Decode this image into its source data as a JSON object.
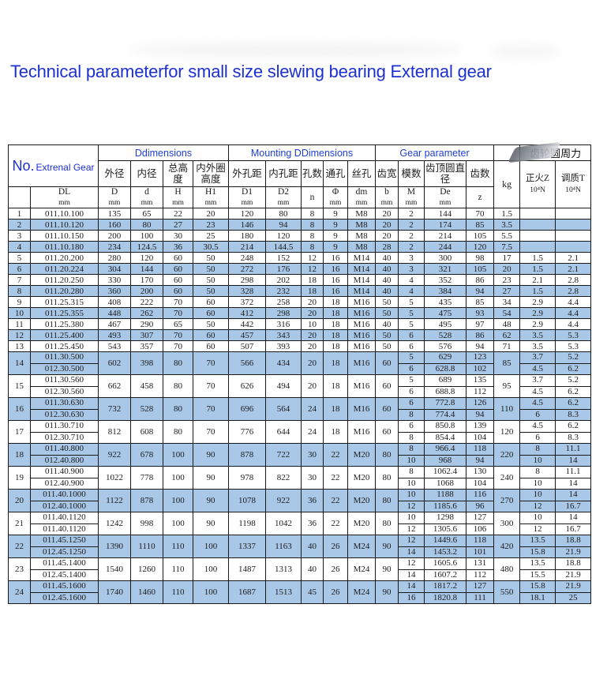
{
  "title": "Technical parameterfor small size slewing bearing External gear",
  "table": {
    "corner_no": "No.",
    "corner_type": "Extrenal Gear",
    "group_headers": [
      "Ddimensions",
      "Mounting DDimensions",
      "Gear parameter"
    ],
    "gear_force_header": "齿轮圆周力",
    "cn_headers": [
      "外径",
      "内径",
      "总高度",
      "内外圈高度",
      "外孔距",
      "内孔距",
      "孔数",
      "通孔",
      "丝孔",
      "齿宽",
      "模数",
      "齿顶圆直径",
      "齿数"
    ],
    "kg_header": "kg",
    "force_headers": [
      [
        "正火Z",
        "10⁴N"
      ],
      [
        "调质T",
        "10⁴N"
      ]
    ],
    "symbol_headers": [
      [
        "DL",
        "mm"
      ],
      [
        "D",
        "mm"
      ],
      [
        "d",
        "mm"
      ],
      [
        "H",
        "mm"
      ],
      [
        "H1",
        "mm"
      ],
      [
        "D1",
        "mm"
      ],
      [
        "D2",
        "mm"
      ],
      [
        "n",
        ""
      ],
      [
        "Φ",
        "mm"
      ],
      [
        "dm",
        "mm"
      ],
      [
        "b",
        "mm"
      ],
      [
        "M",
        "mm"
      ],
      [
        "De",
        "mm"
      ],
      [
        "z",
        ""
      ]
    ],
    "colors": {
      "row_alt": "#a9c7e7",
      "title_blue": "#1c2fd2",
      "header_blue": "#1f3fd4",
      "border": "#1a1a1a"
    },
    "rows": [
      {
        "no": "1",
        "dl": [
          "011.10.100"
        ],
        "vals": [
          "135",
          "65",
          "22",
          "20",
          "120",
          "80",
          "8",
          "9",
          "M8",
          "20"
        ],
        "m": [
          "2"
        ],
        "de": [
          "144"
        ],
        "z": [
          "70"
        ],
        "kg": "1.5",
        "fz": [
          ""
        ],
        "ft": [
          ""
        ]
      },
      {
        "no": "2",
        "dl": [
          "011.10.120"
        ],
        "vals": [
          "160",
          "80",
          "27",
          "23",
          "146",
          "94",
          "8",
          "9",
          "M8",
          "20"
        ],
        "m": [
          "2"
        ],
        "de": [
          "174"
        ],
        "z": [
          "85"
        ],
        "kg": "3.5",
        "fz": [
          ""
        ],
        "ft": [
          ""
        ]
      },
      {
        "no": "3",
        "dl": [
          "011.10.150"
        ],
        "vals": [
          "200",
          "100",
          "30",
          "25",
          "180",
          "120",
          "8",
          "9",
          "M8",
          "20"
        ],
        "m": [
          "2"
        ],
        "de": [
          "214"
        ],
        "z": [
          "105"
        ],
        "kg": "5.5",
        "fz": [
          ""
        ],
        "ft": [
          ""
        ]
      },
      {
        "no": "4",
        "dl": [
          "011.10.180"
        ],
        "vals": [
          "234",
          "124.5",
          "36",
          "30.5",
          "214",
          "144.5",
          "8",
          "9",
          "M8",
          "28"
        ],
        "m": [
          "2"
        ],
        "de": [
          "244"
        ],
        "z": [
          "120"
        ],
        "kg": "7.5",
        "fz": [
          ""
        ],
        "ft": [
          ""
        ]
      },
      {
        "no": "5",
        "dl": [
          "011.20.200"
        ],
        "vals": [
          "280",
          "120",
          "60",
          "50",
          "248",
          "152",
          "12",
          "16",
          "M14",
          "40"
        ],
        "m": [
          "3"
        ],
        "de": [
          "300"
        ],
        "z": [
          "98"
        ],
        "kg": "17",
        "fz": [
          "1.5"
        ],
        "ft": [
          "2.1"
        ]
      },
      {
        "no": "6",
        "dl": [
          "011.20.224"
        ],
        "vals": [
          "304",
          "144",
          "60",
          "50",
          "272",
          "176",
          "12",
          "16",
          "M14",
          "40"
        ],
        "m": [
          "3"
        ],
        "de": [
          "321"
        ],
        "z": [
          "105"
        ],
        "kg": "20",
        "fz": [
          "1.5"
        ],
        "ft": [
          "2.1"
        ]
      },
      {
        "no": "7",
        "dl": [
          "011.20.250"
        ],
        "vals": [
          "330",
          "170",
          "60",
          "50",
          "298",
          "202",
          "18",
          "16",
          "M14",
          "40"
        ],
        "m": [
          "4"
        ],
        "de": [
          "352"
        ],
        "z": [
          "86"
        ],
        "kg": "23",
        "fz": [
          "2.1"
        ],
        "ft": [
          "2.8"
        ]
      },
      {
        "no": "8",
        "dl": [
          "011.20.280"
        ],
        "vals": [
          "360",
          "200",
          "60",
          "50",
          "328",
          "232",
          "18",
          "16",
          "M14",
          "40"
        ],
        "m": [
          "4"
        ],
        "de": [
          "384"
        ],
        "z": [
          "94"
        ],
        "kg": "27",
        "fz": [
          "1.5"
        ],
        "ft": [
          "2.8"
        ]
      },
      {
        "no": "9",
        "dl": [
          "011.25.315"
        ],
        "vals": [
          "408",
          "222",
          "70",
          "60",
          "372",
          "258",
          "20",
          "18",
          "M16",
          "50"
        ],
        "m": [
          "5"
        ],
        "de": [
          "435"
        ],
        "z": [
          "85"
        ],
        "kg": "34",
        "fz": [
          "2.9"
        ],
        "ft": [
          "4.4"
        ]
      },
      {
        "no": "10",
        "dl": [
          "011.25.355"
        ],
        "vals": [
          "448",
          "262",
          "70",
          "60",
          "412",
          "298",
          "20",
          "18",
          "M16",
          "50"
        ],
        "m": [
          "5"
        ],
        "de": [
          "475"
        ],
        "z": [
          "93"
        ],
        "kg": "54",
        "fz": [
          "2.9"
        ],
        "ft": [
          "4.4"
        ]
      },
      {
        "no": "11",
        "dl": [
          "011.25.380"
        ],
        "vals": [
          "467",
          "290",
          "65",
          "50",
          "442",
          "316",
          "10",
          "18",
          "M16",
          "40"
        ],
        "m": [
          "5"
        ],
        "de": [
          "495"
        ],
        "z": [
          "97"
        ],
        "kg": "48",
        "fz": [
          "2.9"
        ],
        "ft": [
          "4.4"
        ]
      },
      {
        "no": "12",
        "dl": [
          "011.25.400"
        ],
        "vals": [
          "493",
          "307",
          "70",
          "60",
          "457",
          "343",
          "20",
          "18",
          "M16",
          "50"
        ],
        "m": [
          "6"
        ],
        "de": [
          "528"
        ],
        "z": [
          "86"
        ],
        "kg": "62",
        "fz": [
          "3.5"
        ],
        "ft": [
          "5.3"
        ]
      },
      {
        "no": "13",
        "dl": [
          "011.25.450"
        ],
        "vals": [
          "543",
          "357",
          "70",
          "60",
          "507",
          "393",
          "20",
          "18",
          "M16",
          "50"
        ],
        "m": [
          "6"
        ],
        "de": [
          "576"
        ],
        "z": [
          "94"
        ],
        "kg": "71",
        "fz": [
          "3.5"
        ],
        "ft": [
          "5.3"
        ]
      },
      {
        "no": "14",
        "dl": [
          "011.30.500",
          "012.30.500"
        ],
        "vals": [
          "602",
          "398",
          "80",
          "70",
          "566",
          "434",
          "20",
          "18",
          "M16",
          "60"
        ],
        "m": [
          "5",
          "6"
        ],
        "de": [
          "629",
          "628.8"
        ],
        "z": [
          "123",
          "102"
        ],
        "kg": "85",
        "fz": [
          "3.7",
          "4.5"
        ],
        "ft": [
          "5.2",
          "6.2"
        ]
      },
      {
        "no": "15",
        "dl": [
          "011.30.560",
          "012.30.560"
        ],
        "vals": [
          "662",
          "458",
          "80",
          "70",
          "626",
          "494",
          "20",
          "18",
          "M16",
          "60"
        ],
        "m": [
          "5",
          "6"
        ],
        "de": [
          "689",
          "688.8"
        ],
        "z": [
          "135",
          "112"
        ],
        "kg": "95",
        "fz": [
          "3.7",
          "4.5"
        ],
        "ft": [
          "5.2",
          "6.2"
        ]
      },
      {
        "no": "16",
        "dl": [
          "011.30.630",
          "012.30.630"
        ],
        "vals": [
          "732",
          "528",
          "80",
          "70",
          "696",
          "564",
          "24",
          "18",
          "M16",
          "60"
        ],
        "m": [
          "6",
          "8"
        ],
        "de": [
          "772.8",
          "774.4"
        ],
        "z": [
          "126",
          "94"
        ],
        "kg": "110",
        "fz": [
          "4.5",
          "6"
        ],
        "ft": [
          "6.2",
          "8.3"
        ]
      },
      {
        "no": "17",
        "dl": [
          "011.30.710",
          "012.30.710"
        ],
        "vals": [
          "812",
          "608",
          "80",
          "70",
          "776",
          "644",
          "24",
          "18",
          "M16",
          "60"
        ],
        "m": [
          "6",
          "8"
        ],
        "de": [
          "850.8",
          "854.4"
        ],
        "z": [
          "139",
          "104"
        ],
        "kg": "120",
        "fz": [
          "4.5",
          "6"
        ],
        "ft": [
          "6.2",
          "8.3"
        ]
      },
      {
        "no": "18",
        "dl": [
          "011.40.800",
          "012.40.800"
        ],
        "vals": [
          "922",
          "678",
          "100",
          "90",
          "878",
          "722",
          "30",
          "22",
          "M20",
          "80"
        ],
        "m": [
          "8",
          "10"
        ],
        "de": [
          "966.4",
          "968"
        ],
        "z": [
          "118",
          "94"
        ],
        "kg": "220",
        "fz": [
          "8",
          "10"
        ],
        "ft": [
          "11.1",
          "14"
        ]
      },
      {
        "no": "19",
        "dl": [
          "011.40.900",
          "012.40.900"
        ],
        "vals": [
          "1022",
          "778",
          "100",
          "90",
          "978",
          "822",
          "30",
          "22",
          "M20",
          "80"
        ],
        "m": [
          "8",
          "10"
        ],
        "de": [
          "1062.4",
          "1068"
        ],
        "z": [
          "130",
          "104"
        ],
        "kg": "240",
        "fz": [
          "8",
          "10"
        ],
        "ft": [
          "11.1",
          "14"
        ]
      },
      {
        "no": "20",
        "dl": [
          "011.40.1000",
          "012.40.1000"
        ],
        "vals": [
          "1122",
          "878",
          "100",
          "90",
          "1078",
          "922",
          "36",
          "22",
          "M20",
          "80"
        ],
        "m": [
          "10",
          "12"
        ],
        "de": [
          "1188",
          "1185.6"
        ],
        "z": [
          "116",
          "96"
        ],
        "kg": "270",
        "fz": [
          "10",
          "12"
        ],
        "ft": [
          "14",
          "16.7"
        ]
      },
      {
        "no": "21",
        "dl": [
          "011.40.1120",
          "011.40.1120"
        ],
        "vals": [
          "1242",
          "998",
          "100",
          "90",
          "1198",
          "1042",
          "36",
          "22",
          "M20",
          "80"
        ],
        "m": [
          "10",
          "12"
        ],
        "de": [
          "1298",
          "1305.6"
        ],
        "z": [
          "127",
          "106"
        ],
        "kg": "300",
        "fz": [
          "10",
          "12"
        ],
        "ft": [
          "14",
          "16.7"
        ]
      },
      {
        "no": "22",
        "dl": [
          "011.45.1250",
          "012.45.1250"
        ],
        "vals": [
          "1390",
          "1110",
          "110",
          "100",
          "1337",
          "1163",
          "40",
          "26",
          "M24",
          "90"
        ],
        "m": [
          "12",
          "14"
        ],
        "de": [
          "1449.6",
          "1453.2"
        ],
        "z": [
          "118",
          "101"
        ],
        "kg": "420",
        "fz": [
          "13.5",
          "15.8"
        ],
        "ft": [
          "18.8",
          "21.9"
        ]
      },
      {
        "no": "23",
        "dl": [
          "011.45.1400",
          "012.45.1400"
        ],
        "vals": [
          "1540",
          "1260",
          "110",
          "100",
          "1487",
          "1313",
          "40",
          "26",
          "M24",
          "90"
        ],
        "m": [
          "12",
          "14"
        ],
        "de": [
          "1605.6",
          "1607.2"
        ],
        "z": [
          "131",
          "112"
        ],
        "kg": "480",
        "fz": [
          "13.5",
          "15.5"
        ],
        "ft": [
          "18.8",
          "21.9"
        ]
      },
      {
        "no": "24",
        "dl": [
          "011.45.1600",
          "012.45.1600"
        ],
        "vals": [
          "1740",
          "1460",
          "110",
          "100",
          "1687",
          "1513",
          "45",
          "26",
          "M24",
          "90"
        ],
        "m": [
          "14",
          "16"
        ],
        "de": [
          "1817.2",
          "1820.8"
        ],
        "z": [
          "127",
          "111"
        ],
        "kg": "550",
        "fz": [
          "15.8",
          "18.1"
        ],
        "ft": [
          "21.9",
          "25"
        ]
      }
    ]
  }
}
